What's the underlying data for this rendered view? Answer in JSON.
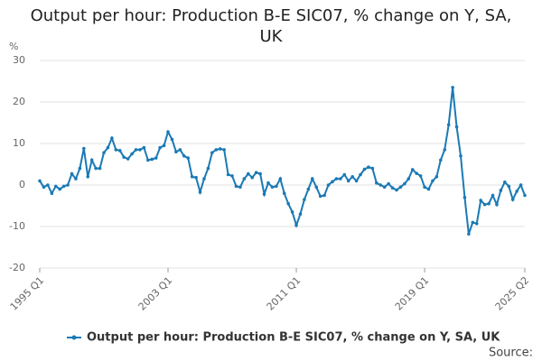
{
  "chart_data": {
    "type": "line",
    "title": "Output per hour: Production B-E SIC07, % change on Y, SA, UK",
    "y_unit": "%",
    "source": "Source:",
    "categories": [
      "1995 Q1",
      null,
      null,
      null,
      null,
      null,
      null,
      null,
      null,
      null,
      null,
      null,
      null,
      null,
      null,
      null,
      null,
      null,
      null,
      null,
      null,
      null,
      null,
      null,
      null,
      null,
      null,
      null,
      null,
      null,
      null,
      null,
      "2003 Q1",
      null,
      null,
      null,
      null,
      null,
      null,
      null,
      null,
      null,
      null,
      null,
      null,
      null,
      null,
      null,
      null,
      null,
      null,
      null,
      null,
      null,
      null,
      null,
      null,
      null,
      null,
      null,
      null,
      null,
      null,
      null,
      "2011 Q1",
      null,
      null,
      null,
      null,
      null,
      null,
      null,
      null,
      null,
      null,
      null,
      null,
      null,
      null,
      null,
      null,
      null,
      null,
      null,
      null,
      null,
      null,
      null,
      null,
      null,
      null,
      null,
      null,
      null,
      null,
      null,
      "2019 Q1",
      null,
      null,
      null,
      null,
      null,
      null,
      null,
      null,
      null,
      null,
      null,
      null,
      null,
      null,
      null,
      null,
      null,
      null,
      null,
      null,
      null,
      null,
      null,
      null,
      "2025 Q2"
    ],
    "series": [
      {
        "name": "Output per hour: Production B-E SIC07, % change on Y, SA, UK",
        "color": "#1a7ab5",
        "values": [
          1,
          -0.5,
          0,
          -2,
          -0.3,
          -1,
          -0.3,
          0,
          2.7,
          1.5,
          4,
          8.8,
          2,
          6,
          4,
          4,
          7.8,
          9,
          11.3,
          8.5,
          8.3,
          6.7,
          6.3,
          7.5,
          8.5,
          8.5,
          9,
          6,
          6.2,
          6.5,
          9,
          9.5,
          12.8,
          11,
          8,
          8.5,
          7,
          6.5,
          2,
          1.8,
          -1.7,
          1.5,
          4,
          7.8,
          8.5,
          8.7,
          8.5,
          2.5,
          2.2,
          -0.3,
          -0.5,
          1.5,
          2.7,
          1.8,
          3,
          2.7,
          -2.2,
          0.5,
          -0.5,
          -0.3,
          1.5,
          -2,
          -4.5,
          -6.5,
          -9.7,
          -7,
          -3.5,
          -1,
          1.5,
          -0.5,
          -2.7,
          -2.5,
          0,
          0.8,
          1.5,
          1.5,
          2.5,
          1,
          2,
          1,
          2.5,
          3.8,
          4.3,
          4,
          0.5,
          0,
          -0.5,
          0.3,
          -0.7,
          -1.2,
          -0.5,
          0.3,
          1.5,
          3.7,
          2.8,
          2.2,
          -0.5,
          -1,
          1,
          2,
          6,
          8.5,
          14.5,
          23.5,
          14,
          7,
          -3,
          -11.8,
          -9,
          -9.3,
          -3.7,
          -4.7,
          -4.5,
          -2.5,
          -4.7,
          -1.3,
          0.7,
          -0.3,
          -3.5,
          -1.5,
          0,
          -2.5
        ]
      }
    ],
    "ylim": [
      -20,
      30
    ],
    "yticks": [
      -20,
      -10,
      0,
      10,
      20,
      30
    ],
    "grid": true,
    "legend": "bottom"
  }
}
